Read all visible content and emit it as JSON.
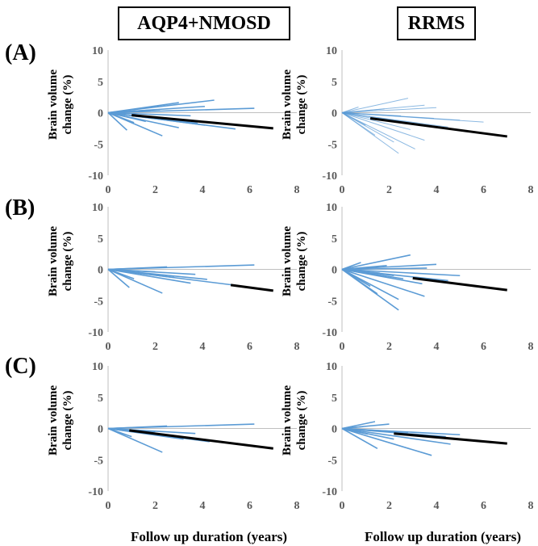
{
  "columns": [
    "AQP4+NMOSD",
    "RRMS"
  ],
  "rows": [
    "(A)",
    "(B)",
    "(C)"
  ],
  "ylabel": "Brain volume change (%)",
  "xlabel": "Follow up duration (years)",
  "colors": {
    "subject": "#5b9bd5",
    "mean": "#000000",
    "axis": "#bfbfbf",
    "tick": "#595959"
  },
  "chart_data": [
    {
      "type": "line",
      "panel": "A-AQP4+NMOSD",
      "xlim": [
        0,
        8
      ],
      "ylim": [
        -10,
        10
      ],
      "xticks": [
        0,
        2,
        4,
        6,
        8
      ],
      "yticks": [
        10,
        5,
        0,
        -5,
        -10
      ],
      "series": [
        {
          "x": [
            0,
            3.0
          ],
          "y": [
            0,
            1.6
          ]
        },
        {
          "x": [
            0,
            4.5
          ],
          "y": [
            0,
            2.0
          ]
        },
        {
          "x": [
            0,
            6.2
          ],
          "y": [
            0,
            0.7
          ]
        },
        {
          "x": [
            0,
            4.1
          ],
          "y": [
            0,
            1.0
          ]
        },
        {
          "x": [
            0,
            2.2
          ],
          "y": [
            0,
            0.5
          ]
        },
        {
          "x": [
            0,
            3.5
          ],
          "y": [
            0,
            -0.5
          ]
        },
        {
          "x": [
            0,
            2.8
          ],
          "y": [
            0,
            -1.2
          ]
        },
        {
          "x": [
            0,
            1.6
          ],
          "y": [
            0,
            -1.4
          ]
        },
        {
          "x": [
            0,
            3.0
          ],
          "y": [
            0,
            -2.4
          ]
        },
        {
          "x": [
            0,
            5.4
          ],
          "y": [
            0,
            -2.6
          ]
        },
        {
          "x": [
            0,
            2.3
          ],
          "y": [
            0,
            -3.7
          ]
        },
        {
          "x": [
            0,
            0.8
          ],
          "y": [
            0,
            -2.8
          ]
        },
        {
          "x": [
            0,
            1.1
          ],
          "y": [
            0,
            -1.6
          ]
        },
        {
          "x": [
            0,
            4.1
          ],
          "y": [
            0,
            -2.0
          ]
        },
        {
          "x": [
            0,
            3.8
          ],
          "y": [
            0,
            -1.7
          ]
        },
        {
          "x": [
            0,
            1.8
          ],
          "y": [
            0,
            0.3
          ]
        },
        {
          "x": [
            1.0,
            7.0
          ],
          "y": [
            -0.4,
            -2.5
          ],
          "mean": true
        }
      ]
    },
    {
      "type": "line",
      "panel": "A-RRMS",
      "xlim": [
        0,
        8
      ],
      "ylim": [
        -10,
        10
      ],
      "xticks": [
        0,
        2,
        4,
        6,
        8
      ],
      "yticks": [
        10,
        5,
        0,
        -5,
        -10
      ],
      "series": [
        {
          "x": [
            0,
            2.8
          ],
          "y": [
            0,
            2.3
          ]
        },
        {
          "x": [
            0,
            4.0
          ],
          "y": [
            0,
            0.8
          ]
        },
        {
          "x": [
            0,
            6.0
          ],
          "y": [
            0,
            -1.5
          ]
        },
        {
          "x": [
            0,
            3.5
          ],
          "y": [
            0,
            1.2
          ]
        },
        {
          "x": [
            0,
            1.8
          ],
          "y": [
            0,
            0.6
          ]
        },
        {
          "x": [
            0,
            2.5
          ],
          "y": [
            0,
            -0.5
          ]
        },
        {
          "x": [
            0,
            3.3
          ],
          "y": [
            0,
            -1.8
          ]
        },
        {
          "x": [
            0,
            4.5
          ],
          "y": [
            0,
            -2.3
          ]
        },
        {
          "x": [
            0,
            5.0
          ],
          "y": [
            0,
            -1.2
          ]
        },
        {
          "x": [
            0,
            2.2
          ],
          "y": [
            0,
            -4.7
          ]
        },
        {
          "x": [
            0,
            2.4
          ],
          "y": [
            0,
            -6.5
          ]
        },
        {
          "x": [
            0,
            3.1
          ],
          "y": [
            0,
            -5.8
          ]
        },
        {
          "x": [
            0,
            1.4
          ],
          "y": [
            0,
            -3.6
          ]
        },
        {
          "x": [
            0,
            1.0
          ],
          "y": [
            0,
            -2.0
          ]
        },
        {
          "x": [
            0,
            3.5
          ],
          "y": [
            0,
            -4.4
          ]
        },
        {
          "x": [
            0,
            0.7
          ],
          "y": [
            0,
            0.9
          ]
        },
        {
          "x": [
            0,
            2.0
          ],
          "y": [
            0,
            -1.4
          ]
        },
        {
          "x": [
            0,
            2.9
          ],
          "y": [
            0,
            -2.7
          ]
        },
        {
          "x": [
            0,
            3.9
          ],
          "y": [
            0,
            -0.9
          ]
        },
        {
          "x": [
            1.2,
            7.0
          ],
          "y": [
            -0.9,
            -3.8
          ],
          "mean": true
        }
      ]
    },
    {
      "type": "line",
      "panel": "B-AQP4+NMOSD",
      "xlim": [
        0,
        8
      ],
      "ylim": [
        -10,
        10
      ],
      "xticks": [
        0,
        2,
        4,
        6,
        8
      ],
      "yticks": [
        10,
        5,
        0,
        -5,
        -10
      ],
      "series": [
        {
          "x": [
            0,
            6.2
          ],
          "y": [
            0,
            0.7
          ]
        },
        {
          "x": [
            0,
            2.5
          ],
          "y": [
            0,
            0.4
          ]
        },
        {
          "x": [
            0,
            1.5
          ],
          "y": [
            0,
            0.2
          ]
        },
        {
          "x": [
            0,
            3.7
          ],
          "y": [
            0,
            -0.8
          ]
        },
        {
          "x": [
            0,
            2.8
          ],
          "y": [
            0,
            -1.3
          ]
        },
        {
          "x": [
            0,
            4.2
          ],
          "y": [
            0,
            -1.6
          ]
        },
        {
          "x": [
            0,
            3.5
          ],
          "y": [
            0,
            -2.2
          ]
        },
        {
          "x": [
            0,
            5.3
          ],
          "y": [
            0,
            -2.5
          ]
        },
        {
          "x": [
            0,
            2.3
          ],
          "y": [
            0,
            -3.8
          ]
        },
        {
          "x": [
            0,
            0.9
          ],
          "y": [
            0,
            -2.9
          ]
        },
        {
          "x": [
            0,
            1.1
          ],
          "y": [
            0,
            -1.5
          ]
        },
        {
          "x": [
            0,
            2.0
          ],
          "y": [
            0,
            -0.4
          ]
        },
        {
          "x": [
            5.2,
            7.0
          ],
          "y": [
            -2.5,
            -3.4
          ],
          "mean": true
        }
      ]
    },
    {
      "type": "line",
      "panel": "B-RRMS",
      "xlim": [
        0,
        8
      ],
      "ylim": [
        -10,
        10
      ],
      "xticks": [
        0,
        2,
        4,
        6,
        8
      ],
      "yticks": [
        10,
        5,
        0,
        -5,
        -10
      ],
      "series": [
        {
          "x": [
            0,
            2.9
          ],
          "y": [
            0,
            2.3
          ]
        },
        {
          "x": [
            0,
            4.0
          ],
          "y": [
            0,
            0.8
          ]
        },
        {
          "x": [
            0,
            0.8
          ],
          "y": [
            0,
            1.1
          ]
        },
        {
          "x": [
            0,
            1.9
          ],
          "y": [
            0,
            0.6
          ]
        },
        {
          "x": [
            0,
            3.6
          ],
          "y": [
            0,
            0.2
          ]
        },
        {
          "x": [
            0,
            5.0
          ],
          "y": [
            0,
            -1.0
          ]
        },
        {
          "x": [
            0,
            4.5
          ],
          "y": [
            0,
            -1.8
          ]
        },
        {
          "x": [
            0,
            3.4
          ],
          "y": [
            0,
            -2.3
          ]
        },
        {
          "x": [
            0,
            2.6
          ],
          "y": [
            0,
            -1.5
          ]
        },
        {
          "x": [
            0,
            2.4
          ],
          "y": [
            0,
            -4.8
          ]
        },
        {
          "x": [
            0,
            2.4
          ],
          "y": [
            0,
            -6.5
          ]
        },
        {
          "x": [
            0,
            3.5
          ],
          "y": [
            0,
            -4.3
          ]
        },
        {
          "x": [
            0,
            1.5
          ],
          "y": [
            0,
            -3.9
          ]
        },
        {
          "x": [
            0,
            1.2
          ],
          "y": [
            0,
            -2.7
          ]
        },
        {
          "x": [
            0,
            1.6
          ],
          "y": [
            0,
            -0.6
          ]
        },
        {
          "x": [
            0,
            2.2
          ],
          "y": [
            0,
            -1.0
          ]
        },
        {
          "x": [
            3.0,
            7.0
          ],
          "y": [
            -1.4,
            -3.3
          ],
          "mean": true
        }
      ]
    },
    {
      "type": "line",
      "panel": "C-AQP4+NMOSD",
      "xlim": [
        0,
        8
      ],
      "ylim": [
        -10,
        10
      ],
      "xticks": [
        0,
        2,
        4,
        6,
        8
      ],
      "yticks": [
        10,
        5,
        0,
        -5,
        -10
      ],
      "series": [
        {
          "x": [
            0,
            6.2
          ],
          "y": [
            0,
            0.7
          ]
        },
        {
          "x": [
            0,
            2.5
          ],
          "y": [
            0,
            0.4
          ]
        },
        {
          "x": [
            0,
            1.5
          ],
          "y": [
            0,
            0.2
          ]
        },
        {
          "x": [
            0,
            3.7
          ],
          "y": [
            0,
            -0.8
          ]
        },
        {
          "x": [
            0,
            3.2
          ],
          "y": [
            0,
            -1.7
          ]
        },
        {
          "x": [
            0,
            4.3
          ],
          "y": [
            0,
            -2.1
          ]
        },
        {
          "x": [
            0,
            5.3
          ],
          "y": [
            0,
            -2.4
          ]
        },
        {
          "x": [
            0,
            2.3
          ],
          "y": [
            0,
            -3.8
          ]
        },
        {
          "x": [
            0,
            1.0
          ],
          "y": [
            0,
            -1.3
          ]
        },
        {
          "x": [
            0,
            2.0
          ],
          "y": [
            0,
            -0.5
          ]
        },
        {
          "x": [
            0.9,
            7.0
          ],
          "y": [
            -0.3,
            -3.2
          ],
          "mean": true
        }
      ]
    },
    {
      "type": "line",
      "panel": "C-RRMS",
      "xlim": [
        0,
        8
      ],
      "ylim": [
        -10,
        10
      ],
      "xticks": [
        0,
        2,
        4,
        6,
        8
      ],
      "yticks": [
        10,
        5,
        0,
        -5,
        -10
      ],
      "series": [
        {
          "x": [
            0,
            1.4
          ],
          "y": [
            0,
            1.1
          ]
        },
        {
          "x": [
            0,
            2.0
          ],
          "y": [
            0,
            0.7
          ]
        },
        {
          "x": [
            0,
            0.9
          ],
          "y": [
            0,
            0.3
          ]
        },
        {
          "x": [
            0,
            5.0
          ],
          "y": [
            0,
            -1.0
          ]
        },
        {
          "x": [
            0,
            2.8
          ],
          "y": [
            0,
            -0.6
          ]
        },
        {
          "x": [
            0,
            4.4
          ],
          "y": [
            0,
            -1.3
          ]
        },
        {
          "x": [
            0,
            4.6
          ],
          "y": [
            0,
            -2.5
          ]
        },
        {
          "x": [
            0,
            3.8
          ],
          "y": [
            0,
            -4.3
          ]
        },
        {
          "x": [
            0,
            1.5
          ],
          "y": [
            0,
            -3.2
          ]
        },
        {
          "x": [
            0,
            2.2
          ],
          "y": [
            0,
            -1.7
          ]
        },
        {
          "x": [
            0,
            1.1
          ],
          "y": [
            0,
            -0.9
          ]
        },
        {
          "x": [
            2.2,
            7.0
          ],
          "y": [
            -0.8,
            -2.4
          ],
          "mean": true
        }
      ]
    }
  ]
}
